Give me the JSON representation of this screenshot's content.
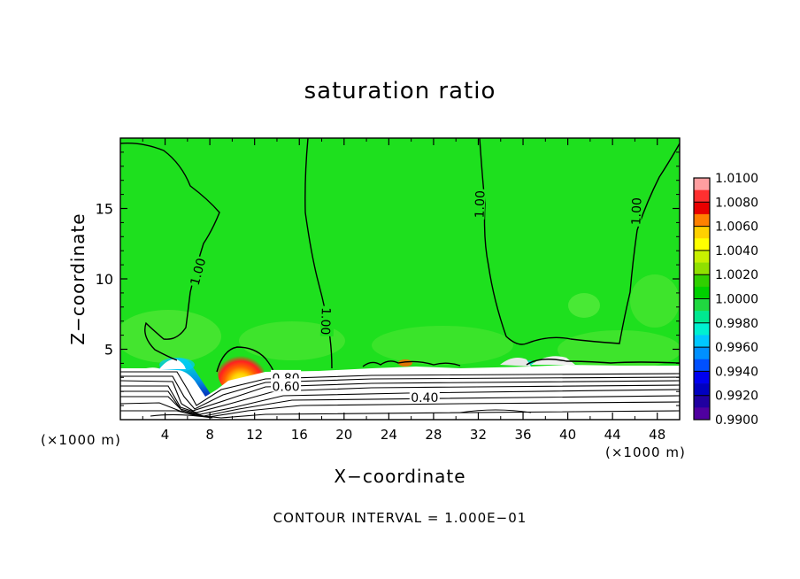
{
  "chart_data": {
    "type": "heatmap",
    "title": "saturation ratio",
    "xlabel": "X−coordinate",
    "ylabel": "Z−coordinate",
    "x_unit_left": "(×1000 m)",
    "x_unit_right": "(×1000 m)",
    "xlim": [
      0,
      50
    ],
    "ylim": [
      0,
      20
    ],
    "x_ticks": [
      4,
      8,
      12,
      16,
      20,
      24,
      28,
      32,
      36,
      40,
      44,
      48
    ],
    "y_ticks": [
      5,
      10,
      15
    ],
    "colorbar": {
      "labels": [
        "1.0100",
        "1.0080",
        "1.0060",
        "1.0040",
        "1.0020",
        "1.0000",
        "0.9980",
        "0.9960",
        "0.9940",
        "0.9920",
        "0.9900"
      ],
      "colors": [
        "#ff9ea0",
        "#ff3030",
        "#e80000",
        "#ff8000",
        "#ffd000",
        "#ffff00",
        "#c8f000",
        "#90e000",
        "#30d000",
        "#00d000",
        "#20d840",
        "#00e890",
        "#00f0d0",
        "#00c8ff",
        "#0090ff",
        "#0050ff",
        "#0000f0",
        "#0000c0",
        "#2000a0",
        "#5000a0"
      ]
    },
    "contour_labels": [
      {
        "text": "1.00",
        "x": 7,
        "z": 10.5
      },
      {
        "text": "1.00",
        "x": 18.3,
        "z": 7.0
      },
      {
        "text": "1.00",
        "x": 32.2,
        "z": 15.3
      },
      {
        "text": "1.00",
        "x": 46.2,
        "z": 14.8
      },
      {
        "text": "0.80",
        "x": 14.8,
        "z": 2.9
      },
      {
        "text": "0.60",
        "x": 14.8,
        "z": 2.3
      },
      {
        "text": "0.40",
        "x": 27.2,
        "z": 1.5
      }
    ],
    "footer": "CONTOUR INTERVAL = 1.000E−01"
  }
}
